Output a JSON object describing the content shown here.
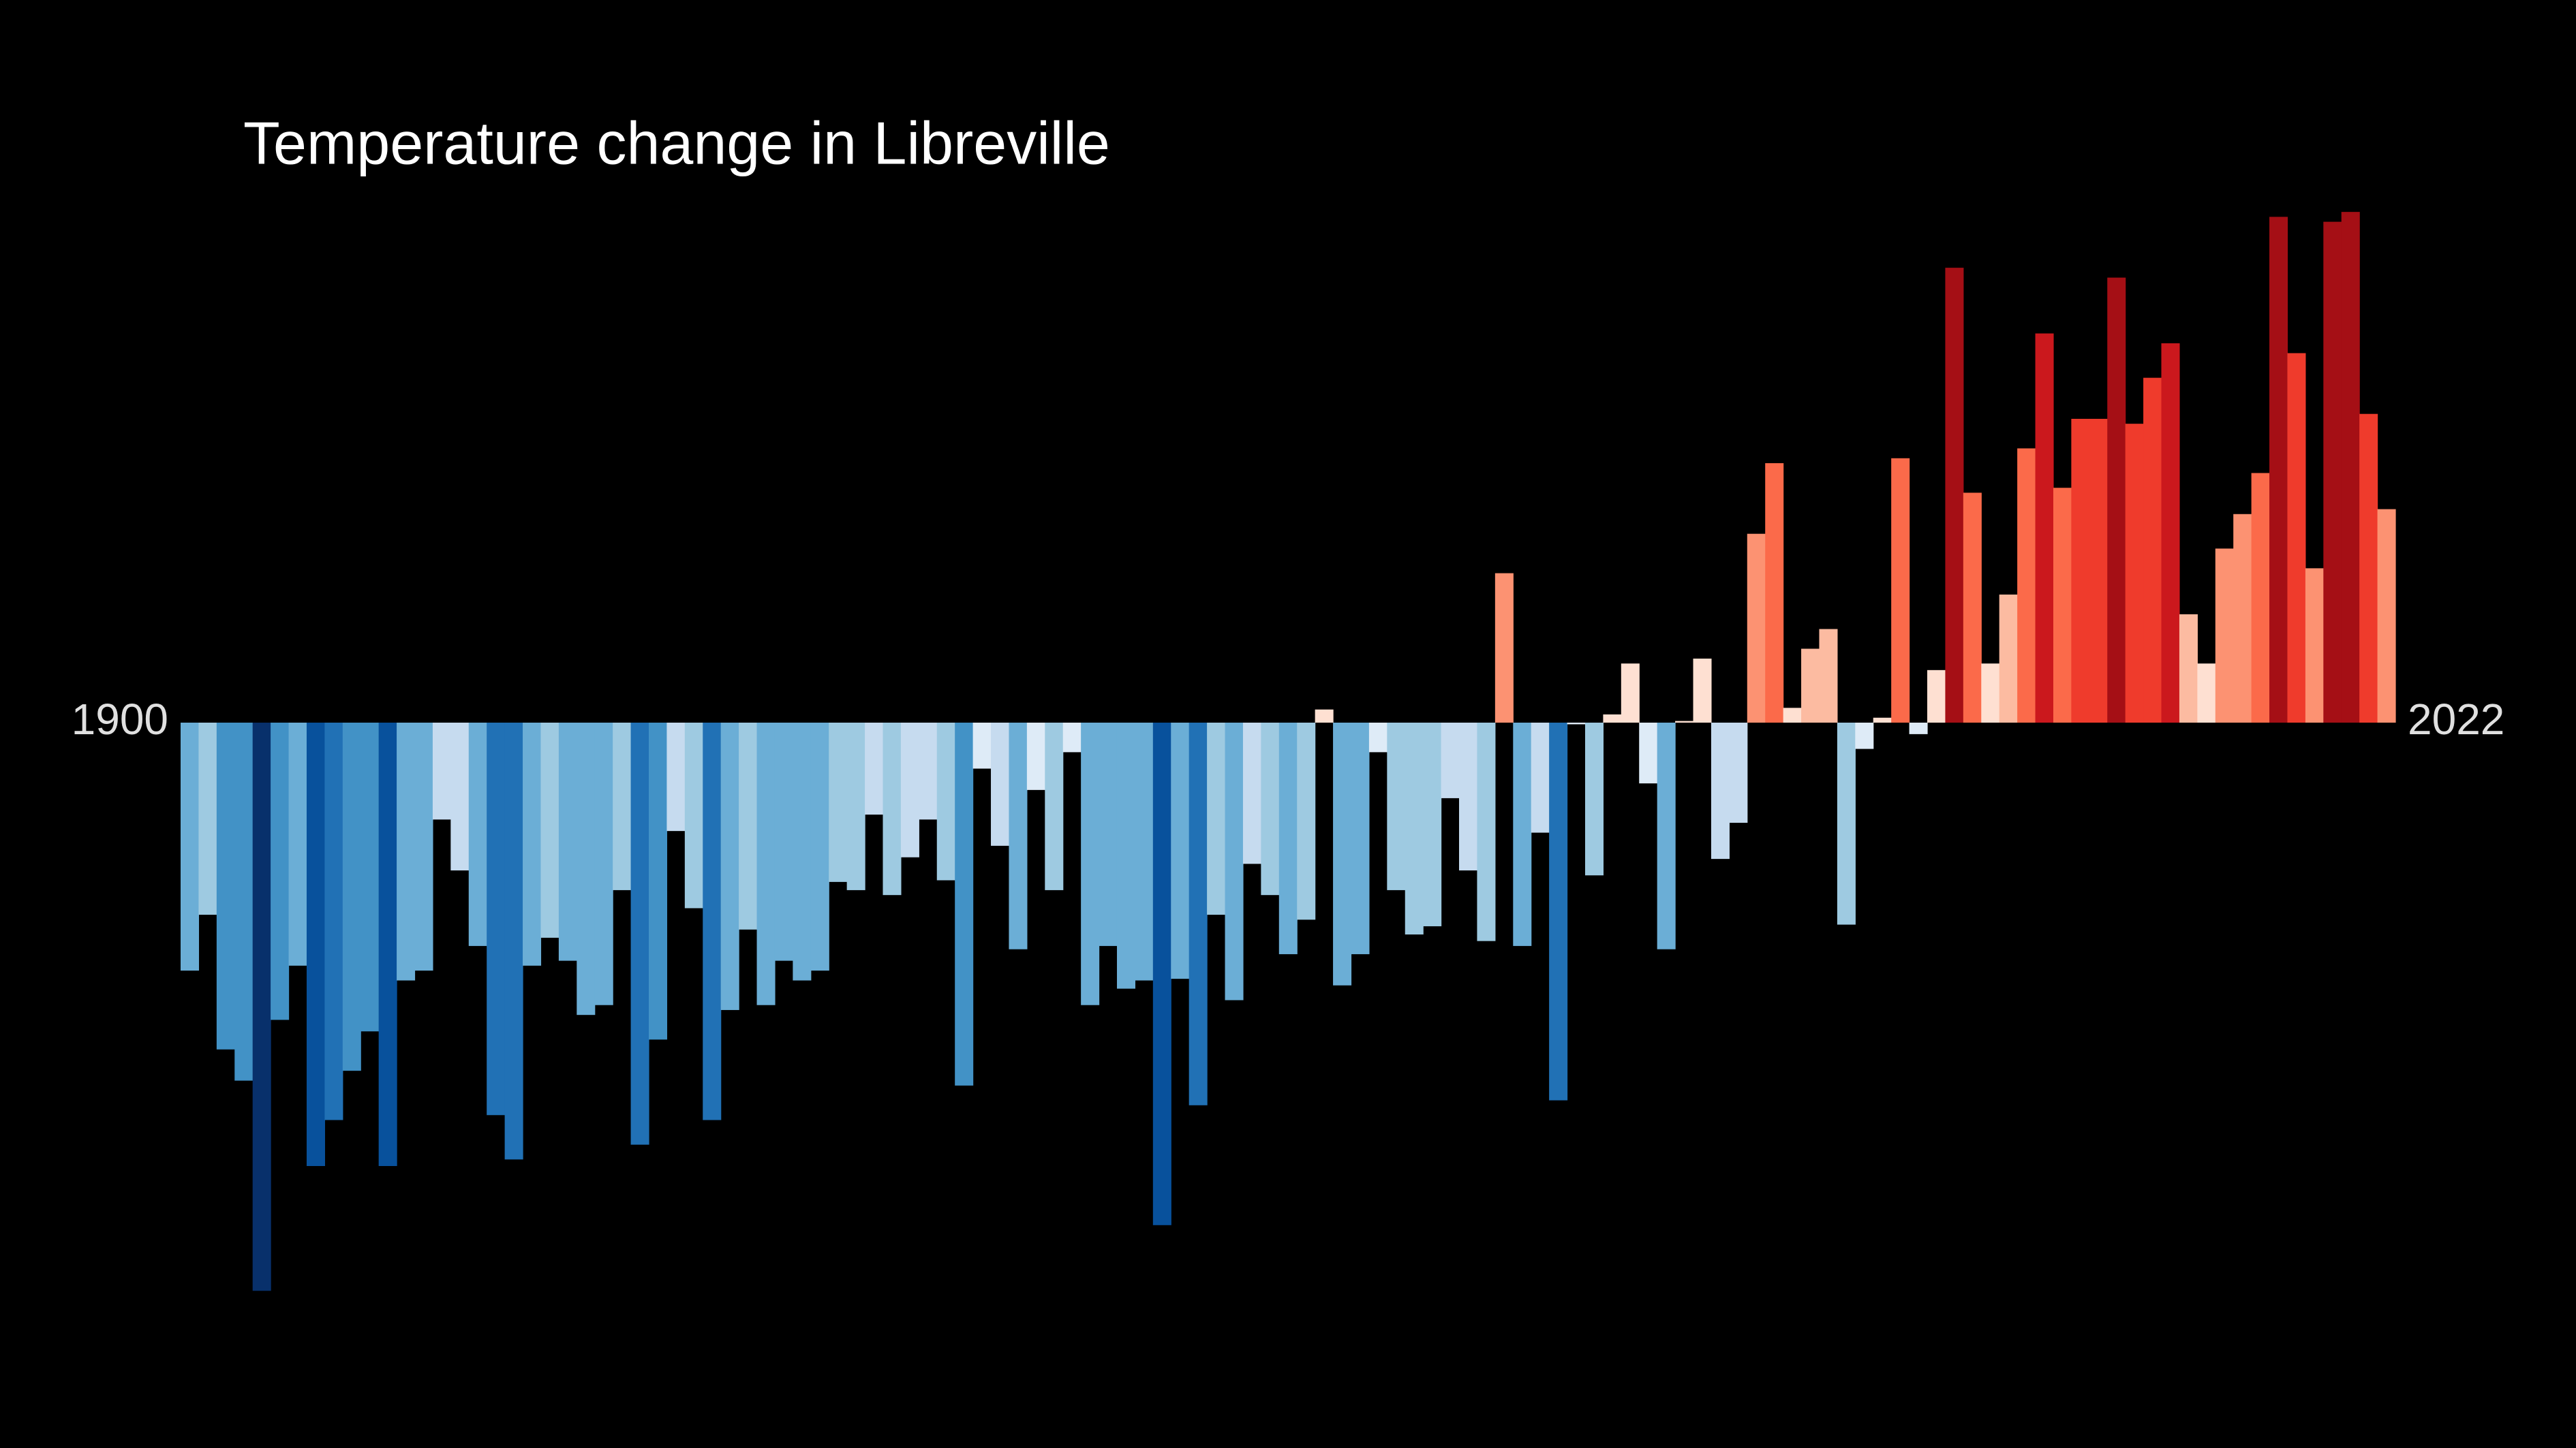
{
  "chart_data": {
    "type": "bar",
    "title": "Temperature change in Libreville",
    "categories": [
      "1900",
      null,
      null,
      null,
      null,
      null,
      null,
      null,
      null,
      null,
      null,
      null,
      null,
      null,
      null,
      null,
      null,
      null,
      null,
      null,
      null,
      null,
      null,
      null,
      null,
      null,
      null,
      null,
      null,
      null,
      null,
      null,
      null,
      null,
      null,
      null,
      null,
      null,
      null,
      null,
      null,
      null,
      null,
      null,
      null,
      null,
      null,
      null,
      null,
      null,
      null,
      null,
      null,
      null,
      null,
      null,
      null,
      null,
      null,
      null,
      null,
      null,
      null,
      null,
      null,
      null,
      null,
      null,
      null,
      null,
      null,
      null,
      null,
      null,
      null,
      null,
      null,
      null,
      null,
      null,
      null,
      null,
      null,
      null,
      null,
      null,
      null,
      null,
      null,
      null,
      null,
      null,
      null,
      null,
      null,
      null,
      null,
      null,
      null,
      null,
      null,
      null,
      null,
      null,
      null,
      null,
      null,
      null,
      null,
      null,
      null,
      null,
      null,
      null,
      null,
      null,
      null,
      null,
      null,
      null,
      null,
      null,
      "2022"
    ],
    "values": [
      -1.51,
      -1.17,
      -1.99,
      -2.18,
      -3.46,
      -1.81,
      -1.48,
      -2.7,
      -2.42,
      -2.12,
      -1.88,
      -2.7,
      -1.57,
      -1.51,
      -0.59,
      -0.9,
      -1.36,
      -2.39,
      -2.66,
      -1.48,
      -1.31,
      -1.45,
      -1.78,
      -1.72,
      -1.02,
      -2.57,
      -1.93,
      -0.66,
      -1.13,
      -2.42,
      -1.75,
      -1.26,
      -1.72,
      -1.45,
      -1.57,
      -1.51,
      -0.97,
      -1.02,
      -0.56,
      -1.05,
      -0.82,
      -0.59,
      -0.96,
      -2.21,
      -0.28,
      -0.75,
      -1.38,
      -0.41,
      -1.02,
      -0.18,
      -1.72,
      -1.36,
      -1.62,
      -1.57,
      -3.06,
      -1.56,
      -2.33,
      -1.17,
      -1.69,
      -0.86,
      -1.05,
      -1.41,
      -1.2,
      0.08,
      -1.6,
      -1.41,
      -0.18,
      -1.02,
      -1.29,
      -1.24,
      -0.46,
      -0.9,
      -1.33,
      0.91,
      -1.36,
      -0.67,
      -2.3,
      -0.01,
      -0.93,
      0.05,
      0.36,
      -0.37,
      -1.38,
      0.01,
      0.39,
      -0.83,
      -0.61,
      1.15,
      1.58,
      0.09,
      0.45,
      0.57,
      -1.23,
      -0.16,
      0.03,
      1.61,
      -0.07,
      0.32,
      2.77,
      1.4,
      0.36,
      0.78,
      1.67,
      2.37,
      1.43,
      1.85,
      1.85,
      2.71,
      1.82,
      2.1,
      2.31,
      0.66,
      0.36,
      1.06,
      1.27,
      1.52,
      3.08,
      2.25,
      0.94,
      3.05,
      3.11,
      1.88,
      1.3
    ],
    "ylim": [
      -3.6,
      3.6
    ],
    "colormap": [
      "#08306b",
      "#08519c",
      "#2171b5",
      "#4292c6",
      "#6baed6",
      "#9ecae1",
      "#c6dbef",
      "#deebf7",
      "#fee0d2",
      "#fcbba1",
      "#fc9272",
      "#fb6a4a",
      "#ef3b2c",
      "#cb181d",
      "#a50f15",
      "#67000d"
    ]
  }
}
